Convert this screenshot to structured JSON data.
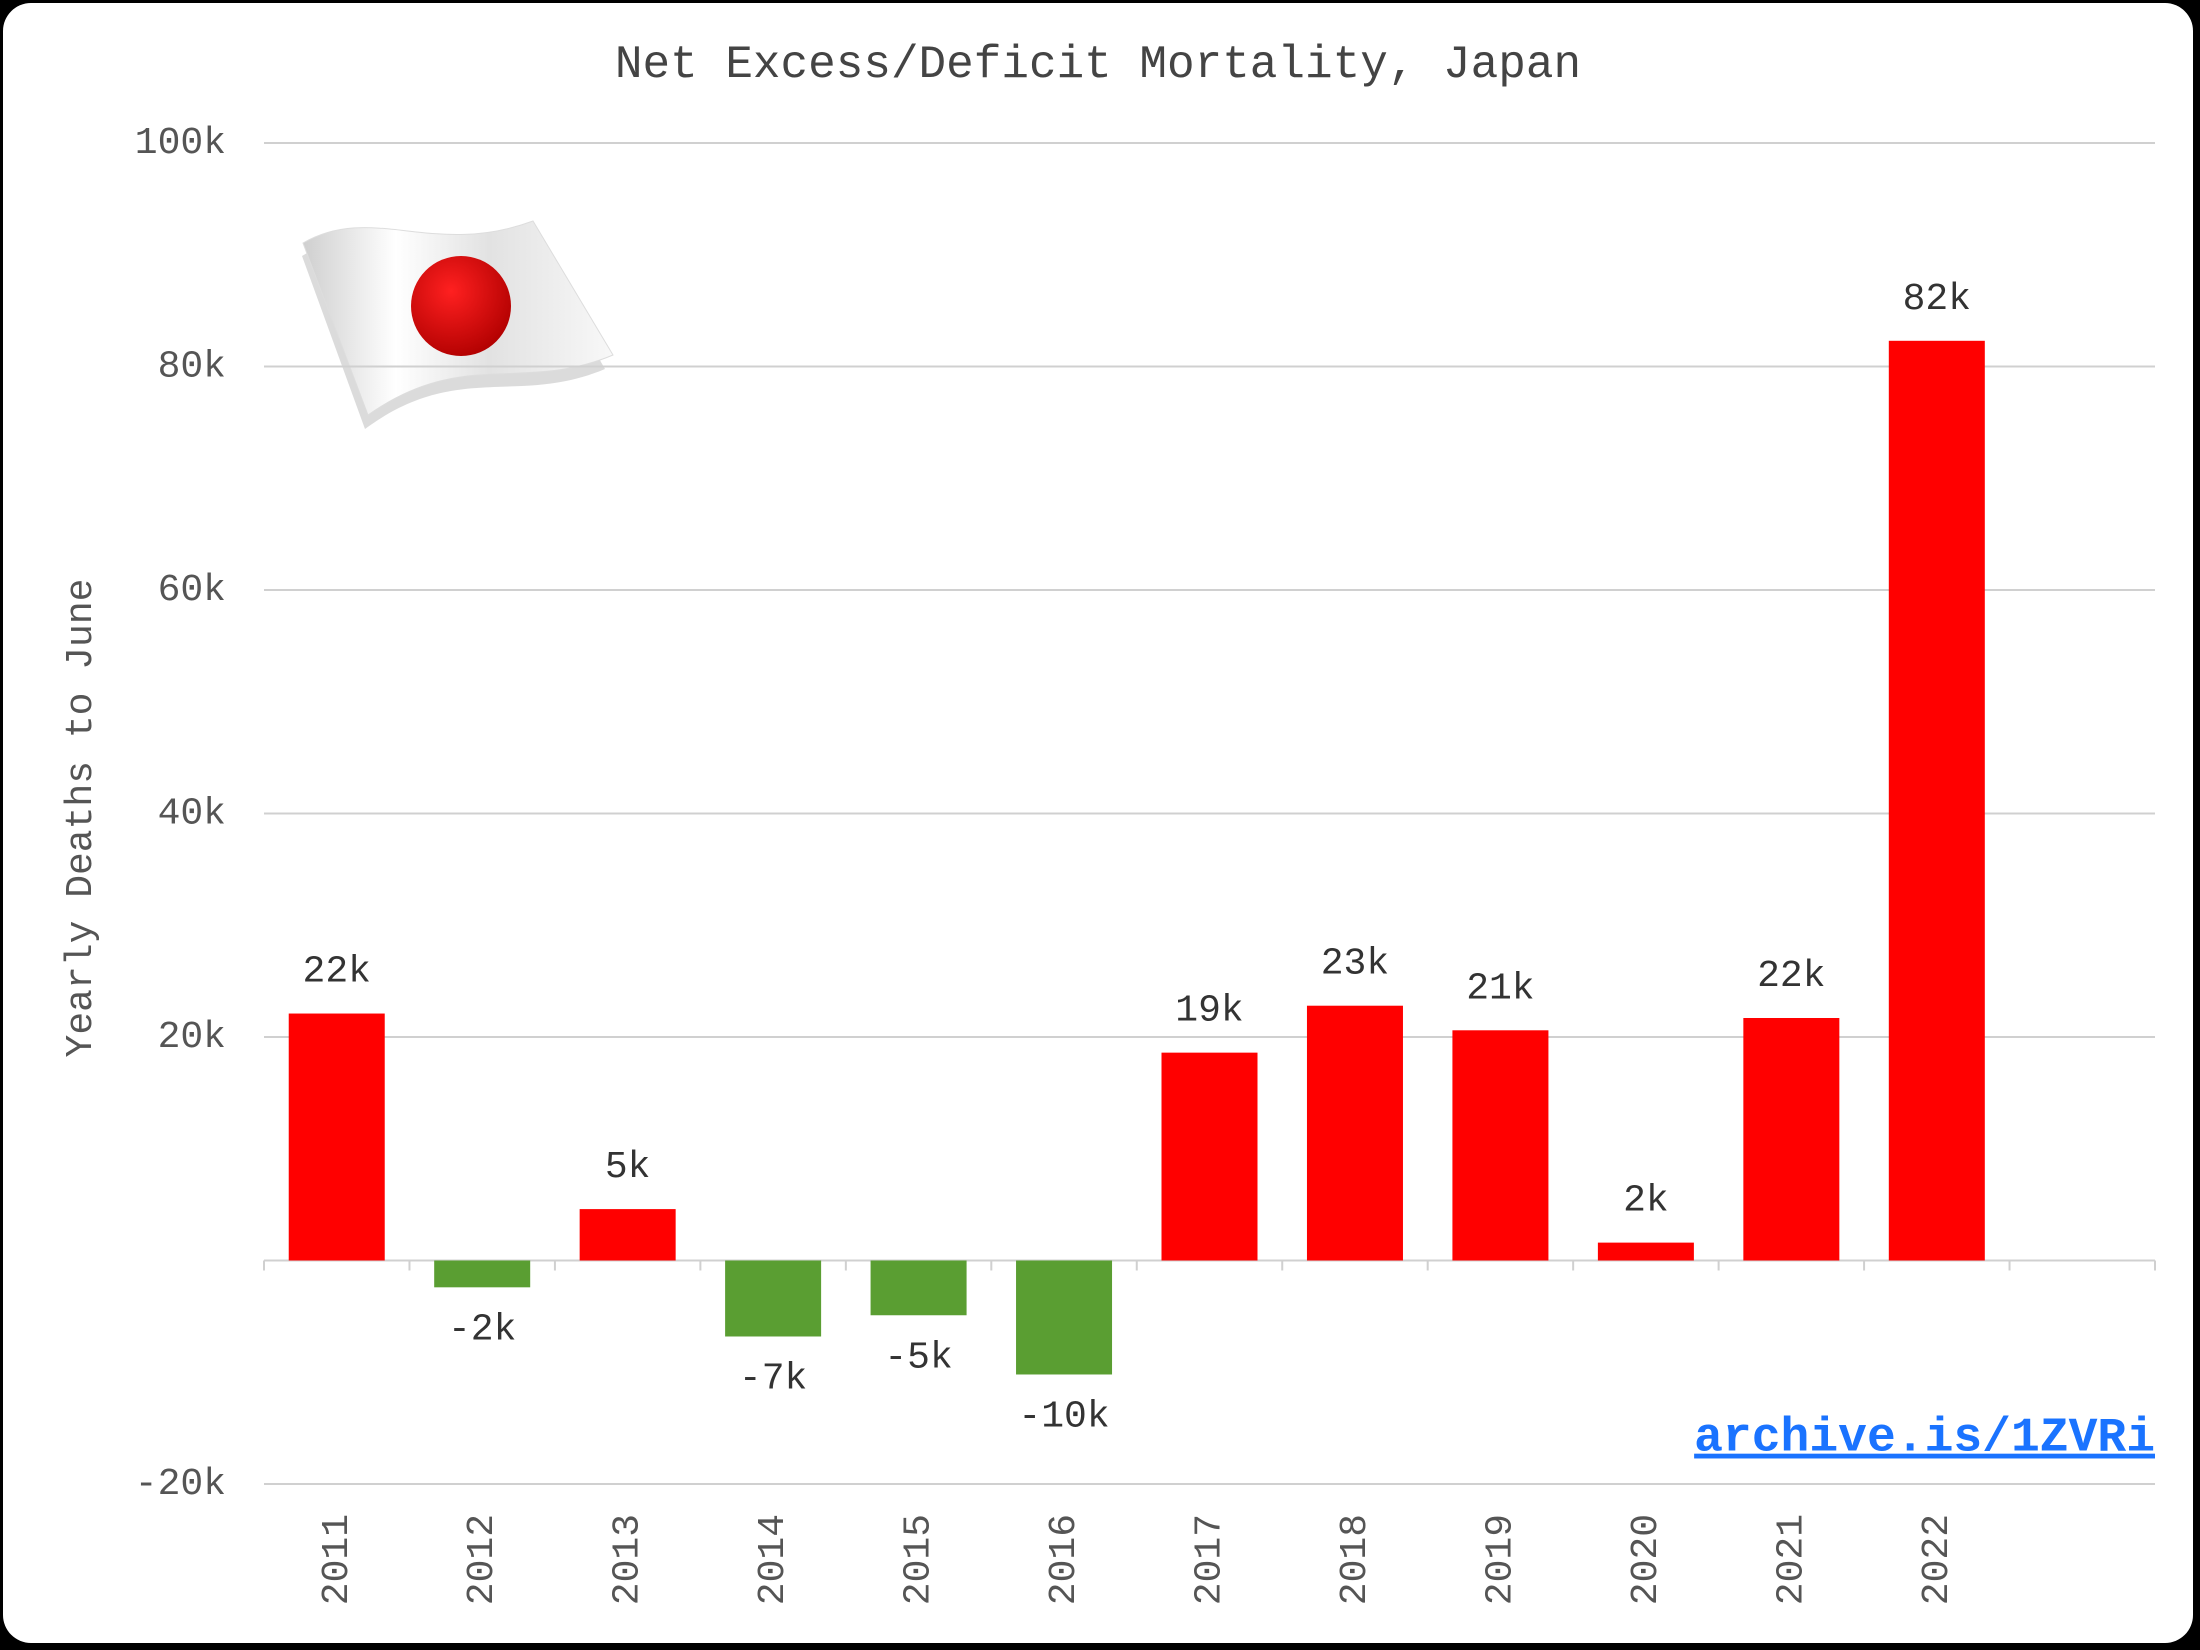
{
  "chart_data": {
    "type": "bar",
    "title": "Net Excess/Deficit Mortality, Japan",
    "y_label": "Yearly Deaths to June",
    "annotation": "archive.is/1ZVRi",
    "categories": [
      "2011",
      "2012",
      "2013",
      "2014",
      "2015",
      "2016",
      "2017",
      "2018",
      "2019",
      "2020",
      "2021",
      "2022"
    ],
    "values": [
      22100,
      -2400,
      4600,
      -6800,
      -4900,
      -10200,
      18600,
      22800,
      20600,
      1600,
      21700,
      82300
    ],
    "value_labels": [
      "22k",
      "-2k",
      "5k",
      "-7k",
      "-5k",
      "-10k",
      "19k",
      "23k",
      "21k",
      "2k",
      "22k",
      "82k"
    ],
    "colors": [
      "#ff0000",
      "#5a9e32",
      "#ff0000",
      "#5a9e32",
      "#5a9e32",
      "#5a9e32",
      "#ff0000",
      "#ff0000",
      "#ff0000",
      "#ff0000",
      "#ff0000",
      "#ff0000"
    ],
    "ylim": [
      -20000,
      100000
    ],
    "yticks": [
      {
        "value": -20000,
        "label": "-20k"
      },
      {
        "value": 20000,
        "label": "20k"
      },
      {
        "value": 40000,
        "label": "40k"
      },
      {
        "value": 60000,
        "label": "60k"
      },
      {
        "value": 80000,
        "label": "80k"
      },
      {
        "value": 100000,
        "label": "100k"
      }
    ],
    "grid": true
  }
}
